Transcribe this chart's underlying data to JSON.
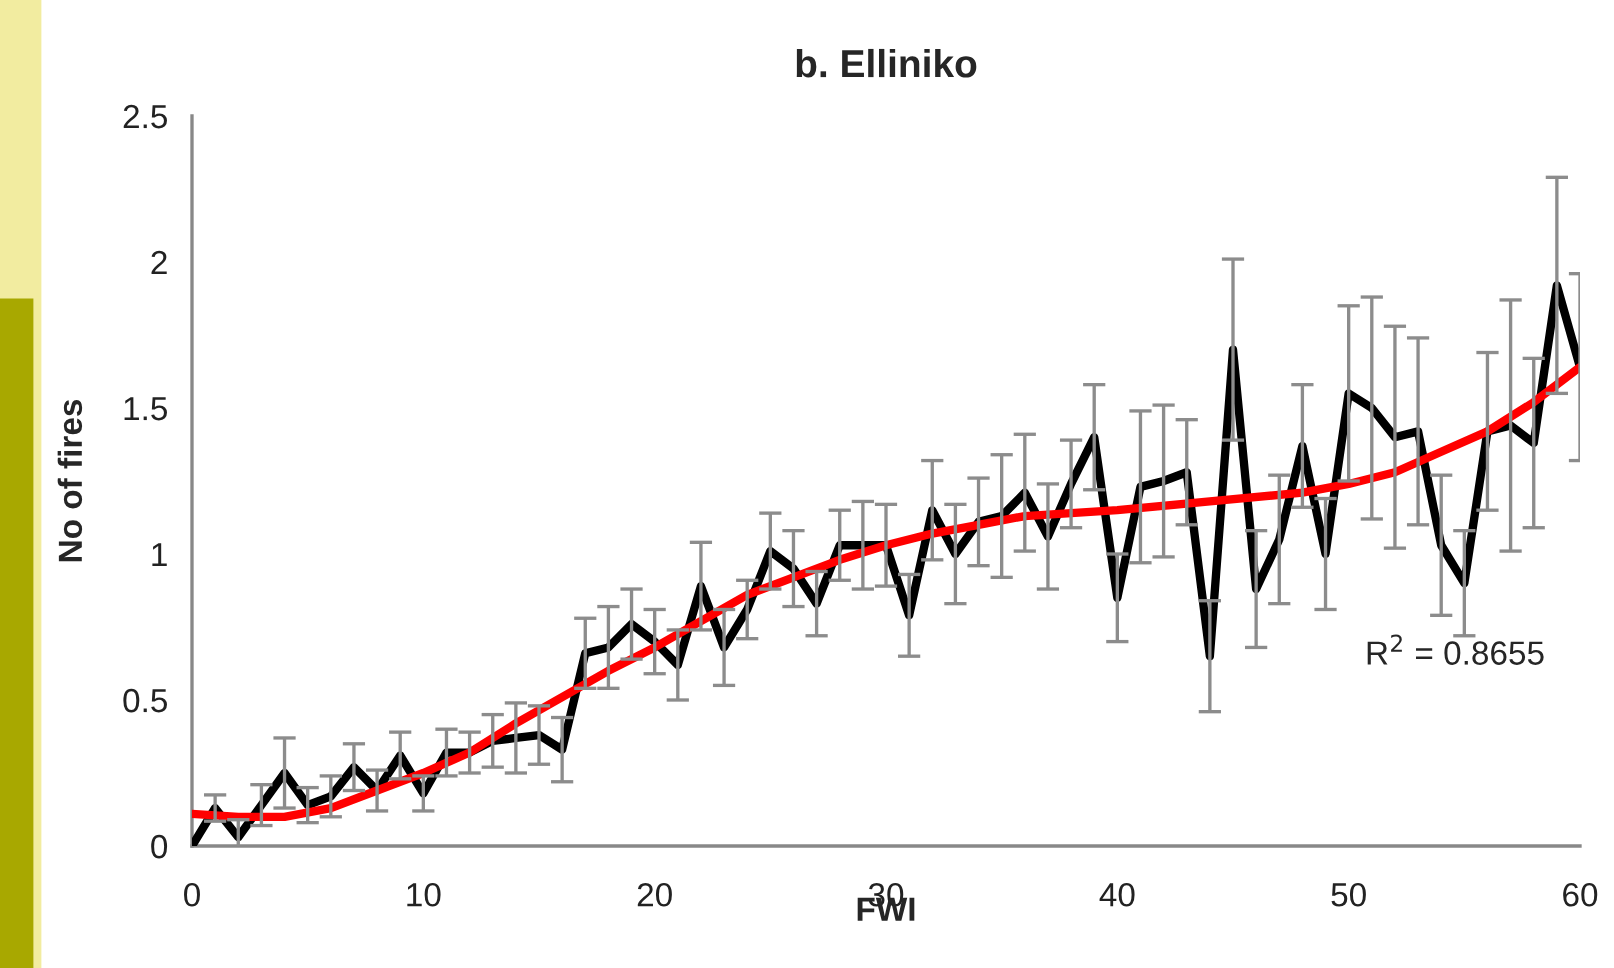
{
  "chart_data": {
    "type": "line",
    "title": "b. Elliniko",
    "xlabel": "FWI",
    "ylabel": "No of fires",
    "x": [
      0,
      1,
      2,
      3,
      4,
      5,
      6,
      7,
      8,
      9,
      10,
      11,
      12,
      13,
      14,
      15,
      16,
      17,
      18,
      19,
      20,
      21,
      22,
      23,
      24,
      25,
      26,
      27,
      28,
      29,
      30,
      31,
      32,
      33,
      34,
      35,
      36,
      37,
      38,
      39,
      40,
      41,
      42,
      43,
      44,
      45,
      46,
      47,
      48,
      49,
      50,
      51,
      52,
      53,
      54,
      55,
      56,
      57,
      58,
      59,
      60
    ],
    "series": [
      {
        "color": "#000000",
        "values": [
          0,
          0.13,
          0.03,
          0.14,
          0.25,
          0.14,
          0.17,
          0.27,
          0.19,
          0.31,
          0.18,
          0.32,
          0.32,
          0.36,
          0.37,
          0.38,
          0.33,
          0.66,
          0.68,
          0.76,
          0.7,
          0.62,
          0.89,
          0.68,
          0.81,
          1.01,
          0.95,
          0.83,
          1.03,
          1.03,
          1.03,
          0.79,
          1.15,
          1.0,
          1.11,
          1.13,
          1.21,
          1.06,
          1.24,
          1.4,
          0.85,
          1.23,
          1.25,
          1.28,
          0.65,
          1.7,
          0.88,
          1.05,
          1.37,
          1.0,
          1.55,
          1.5,
          1.4,
          1.42,
          1.03,
          0.9,
          1.42,
          1.44,
          1.38,
          1.92,
          1.64
        ],
        "errors": [
          null,
          0.045,
          0.06,
          0.07,
          0.12,
          0.06,
          0.07,
          0.08,
          0.07,
          0.08,
          0.06,
          0.08,
          0.07,
          0.09,
          0.12,
          0.1,
          0.11,
          0.12,
          0.14,
          0.12,
          0.11,
          0.12,
          0.15,
          0.13,
          0.1,
          0.13,
          0.13,
          0.11,
          0.12,
          0.15,
          0.14,
          0.14,
          0.17,
          0.17,
          0.15,
          0.21,
          0.2,
          0.18,
          0.15,
          0.18,
          0.15,
          0.26,
          0.26,
          0.18,
          0.19,
          0.31,
          0.2,
          0.22,
          0.21,
          0.19,
          0.3,
          0.38,
          0.38,
          0.32,
          0.24,
          0.18,
          0.27,
          0.43,
          0.29,
          0.37,
          0.32
        ]
      },
      {
        "color": "#ff0000",
        "x": [
          0,
          2,
          4,
          6,
          8,
          10,
          12,
          14,
          16,
          18,
          20,
          22,
          24,
          26,
          28,
          30,
          32,
          34,
          36,
          38,
          40,
          44,
          48,
          50,
          52,
          54,
          56,
          58,
          60
        ],
        "values": [
          0.11,
          0.1,
          0.1,
          0.13,
          0.19,
          0.25,
          0.32,
          0.42,
          0.51,
          0.6,
          0.68,
          0.77,
          0.86,
          0.92,
          0.98,
          1.03,
          1.07,
          1.1,
          1.13,
          1.14,
          1.15,
          1.18,
          1.21,
          1.24,
          1.28,
          1.35,
          1.42,
          1.52,
          1.64
        ]
      }
    ],
    "annotations": [
      "R$^{2}$ = 0.8655"
    ],
    "xlim": [
      0,
      60
    ],
    "xticks": [
      0,
      10,
      20,
      30,
      40,
      50,
      60
    ],
    "ylim": [
      0,
      2.5
    ],
    "yticks": [
      0,
      0.5,
      1,
      1.5,
      2,
      2.5
    ],
    "grid": false,
    "legend": false,
    "marker": "none",
    "line_style": "solid"
  }
}
